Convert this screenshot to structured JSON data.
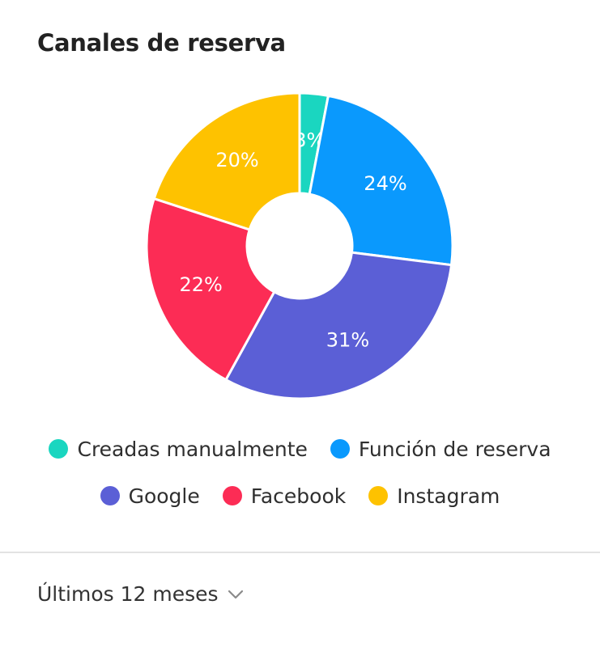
{
  "card": {
    "title": "Canales de reserva"
  },
  "chart_data": {
    "type": "pie",
    "donut": true,
    "slices": [
      {
        "label": "Creadas manualmente",
        "value": 3,
        "display": "3%",
        "color": "#1ad6c0"
      },
      {
        "label": "Función de reserva",
        "value": 24,
        "display": "24%",
        "color": "#0a99fd"
      },
      {
        "label": "Google",
        "value": 31,
        "display": "31%",
        "color": "#5b5fd6"
      },
      {
        "label": "Facebook",
        "value": 22,
        "display": "22%",
        "color": "#fc2c55"
      },
      {
        "label": "Instagram",
        "value": 20,
        "display": "20%",
        "color": "#fec200"
      }
    ],
    "legend_position": "bottom"
  },
  "legend": {
    "rows": [
      [
        "Creadas manualmente",
        "Función de reserva"
      ],
      [
        "Google",
        "Facebook",
        "Instagram"
      ]
    ]
  },
  "footer": {
    "period_label": "Últimos 12 meses",
    "icon": "chevron-down-icon"
  }
}
